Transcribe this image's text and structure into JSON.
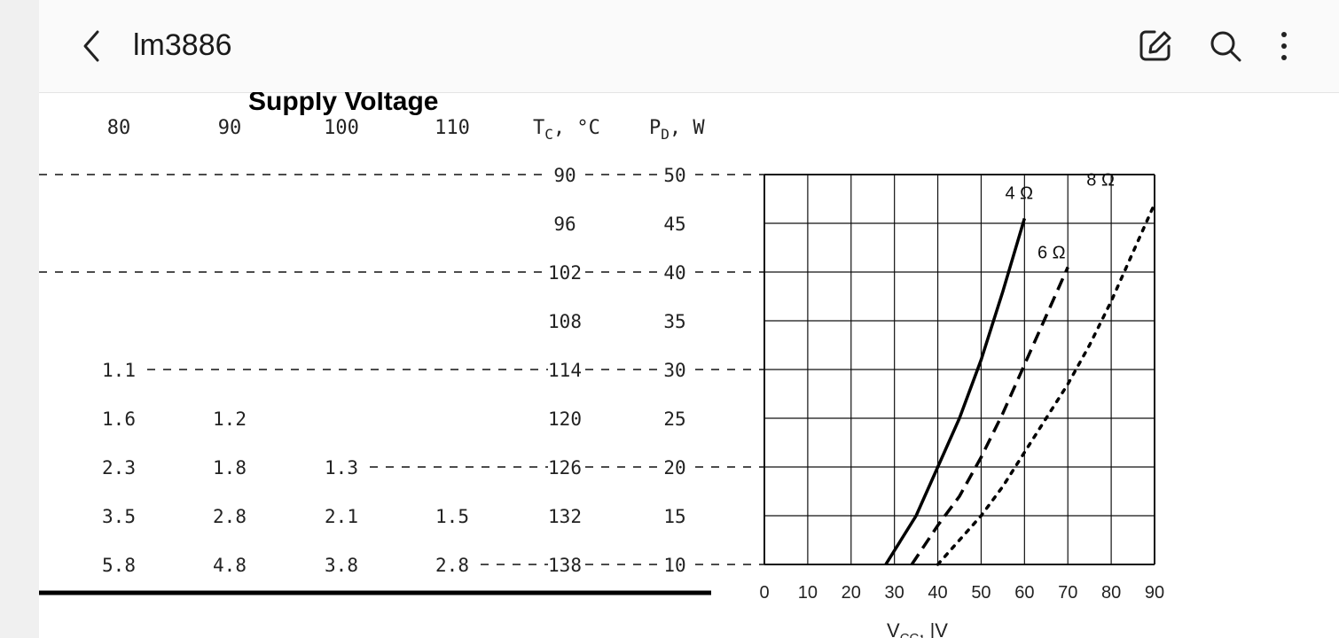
{
  "header": {
    "title": "lm3886",
    "icons": [
      "chevron-left-icon",
      "edit-icon",
      "search-icon",
      "more-vertical-icon"
    ]
  },
  "document": {
    "heading": "Supply Voltage",
    "table": {
      "columns": [
        "80",
        "90",
        "100",
        "110",
        "T",
        "P"
      ],
      "tc_header": {
        "main": "T",
        "sub": "C",
        "unit": ", °C"
      },
      "pd_header": {
        "main": "P",
        "sub": "D",
        "unit": ", W"
      },
      "tc_values": [
        "90",
        "96",
        "102",
        "108",
        "114",
        "120",
        "126",
        "132",
        "138"
      ],
      "pd_values": [
        "50",
        "45",
        "40",
        "35",
        "30",
        "25",
        "20",
        "15",
        "10"
      ],
      "cells": [
        [
          "",
          "",
          "",
          ""
        ],
        [
          "",
          "",
          "",
          ""
        ],
        [
          "",
          "",
          "",
          ""
        ],
        [
          "",
          "",
          "",
          ""
        ],
        [
          "1.1",
          "",
          "",
          ""
        ],
        [
          "1.6",
          "1.2",
          "",
          ""
        ],
        [
          "2.3",
          "1.8",
          "1.3",
          ""
        ],
        [
          "3.5",
          "2.8",
          "2.1",
          "1.5"
        ],
        [
          "5.8",
          "4.8",
          "3.8",
          "2.8"
        ]
      ]
    }
  },
  "chart_data": {
    "type": "line",
    "title": "",
    "xlabel": "V",
    "xlabel_sub": "CC",
    "xlabel_rest": ", |V",
    "xticks": [
      "0",
      "10",
      "20",
      "30",
      "40",
      "50",
      "60",
      "70",
      "80",
      "90"
    ],
    "xlim": [
      0,
      90
    ],
    "ylim": [
      10,
      50
    ],
    "grid": true,
    "series": [
      {
        "name": "4 Ω",
        "style": "solid",
        "x": [
          28,
          35,
          40,
          45,
          50,
          55,
          60
        ],
        "y": [
          10,
          15,
          20,
          25,
          31,
          38,
          45.5
        ]
      },
      {
        "name": "6 Ω",
        "style": "dashed",
        "x": [
          34,
          40,
          45,
          50,
          55,
          60,
          65,
          70
        ],
        "y": [
          10,
          14,
          17,
          21,
          25.5,
          30.5,
          35.5,
          40.5
        ]
      },
      {
        "name": "8 Ω",
        "style": "dotted",
        "x": [
          40,
          45,
          50,
          55,
          60,
          65,
          70,
          75,
          80,
          85,
          90
        ],
        "y": [
          10,
          12.5,
          15,
          18,
          21.5,
          25,
          28.5,
          32.5,
          37,
          42,
          47
        ]
      }
    ]
  }
}
